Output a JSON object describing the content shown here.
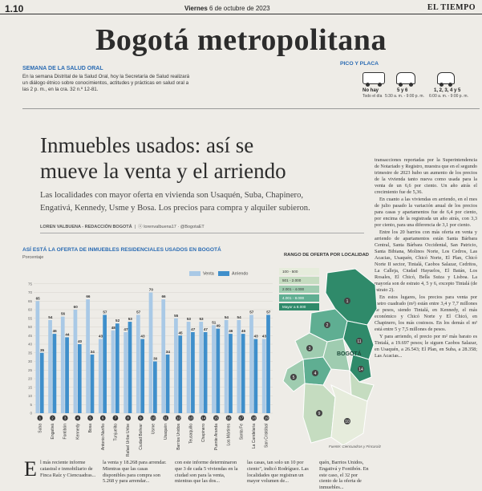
{
  "header": {
    "page_number": "1.10",
    "date_prefix": "Viernes",
    "date_rest": "6 de octubre de 2023",
    "newspaper": "EL TIEMPO",
    "section": "Bogotá metropolitana"
  },
  "semana": {
    "title": "SEMANA DE LA SALUD ORAL",
    "body": "En la semana Distrital de la Salud Oral, hoy la Secretaría de Salud realizará un diálogo étnico sobre conocimientos, actitudes y prácticas en salud oral a las 2 p. m., en la cra. 32 n.º 12-81."
  },
  "pico_placa": {
    "title": "PICO Y PLACA",
    "no_hay": "No hay",
    "no_hay_sub": "Todo el día",
    "taxi": "5 y 6",
    "taxi_sub": "5:30 a. m. - 9:00 p. m.",
    "special": "1, 2, 3, 4 y 5",
    "special_sub": "6:00 a. m. - 9:00 p. m."
  },
  "article": {
    "headline_line1": "Inmuebles usados: así se",
    "headline_line2": "mueve la venta y el arriendo",
    "deck_line1": "Las localidades con mayor oferta en vivienda son Usaquén, Suba, Chapinero,",
    "deck_line2": "Engativá, Kennedy, Usme y Bosa. Los precios para compra y alquiler subieron.",
    "byline": "LOREN VALBUENA - REDACCIÓN BOGOTÁ",
    "social": "lorenvalbuena17 · @BogotaET"
  },
  "right_column": [
    "transacciones reportadas por la Superintendencia de Notariado y Registro, muestra que en el segundo trimestre de 2023 hubo un aumento de los precios de la vivienda tanto nueva como usada para la venta de un 6,6 por ciento. Un año atrás el crecimiento fue de 5,36.",
    "En cuanto a las viviendas en arriendo, en el mes de julio pasado la variación anual de los precios para casas y apartamentos fue de 6,4 por ciento, por encima de la registrada un año atrás, con 3,3 por ciento, para una diferencia de 3,1 por ciento.",
    "Entre los 20 barrios con más oferta en venta y arriendo de apartamentos están Santa Bárbara Central, Santa Bárbara Occidental, San Patricio, Santa Bibiana, Molinos Norte, Los Cedros, Las Acacias, Usaquén, Chicó Norte, El Plan, Chicó Norte II sector, Tintalá, Caobos Salazar, Cedritos, La Calleja, Ciudad Hayuelos, El Batán, Los Rosales, El Chicó, Bella Suiza y Lisboa. La mayoría son de estrato 4, 5 y 6, excepto Tintalá (de estrato 2).",
    "En estos lugares, los precios para venta por metro cuadrado (m²) están entre 3,4 y 7,7 millones de pesos, siendo Tintalá, en Kennedy, el más económico y Chicó Norte y El Chicó, en Chapinero, los más costosos. En los demás el m² está entre 5 y 7,5 millones de pesos.",
    "Y para arriendo, el precio por m² más barato es Tintalá, a 19.697 pesos; le siguen Caobos Salazar, en Usaquén, a 26.543; El Plan, en Suba, a 28.358; Las Acacias..."
  ],
  "chart_data": {
    "type": "bar",
    "title": "ASÍ ESTÁ LA OFERTA DE INMUEBLES RESIDENCIALES USADOS EN BOGOTÁ",
    "ylabel": "Porcentaje",
    "ylim": [
      0,
      80
    ],
    "yticks": [
      0,
      5,
      10,
      15,
      20,
      25,
      30,
      35,
      40,
      45,
      50,
      55,
      60,
      65,
      70,
      75
    ],
    "categories": [
      "Suba",
      "Engativá",
      "Fontibón",
      "Kennedy",
      "Bosa",
      "Antonio Nariño",
      "Tunjuelito",
      "Rafael Uribe Uribe",
      "Ciudad Bolívar",
      "Usme",
      "Usaquén",
      "Barrios Unidos",
      "Teusaquillo",
      "Chapinero",
      "Puente Aranda",
      "Los Mártires",
      "Santa Fe",
      "La Candelaria",
      "San Cristóbal"
    ],
    "numbers": [
      "1",
      "2",
      "3",
      "4",
      "5",
      "6",
      "7",
      "8",
      "9",
      "10",
      "11",
      "12",
      "13",
      "14",
      "15",
      "16",
      "17",
      "18",
      "19"
    ],
    "series": [
      {
        "name": "Venta",
        "color": "#a9c9e6",
        "values": [
          65,
          54,
          56,
          60,
          66,
          43,
          48,
          47,
          57,
          70,
          66,
          55,
          53,
          53,
          51,
          54,
          54,
          57,
          43
        ]
      },
      {
        "name": "Arriendo",
        "color": "#3f8fcb",
        "values": [
          35,
          46,
          44,
          40,
          34,
          57,
          52,
          53,
          43,
          30,
          34,
          45,
          47,
          47,
          49,
          46,
          46,
          43,
          57
        ]
      }
    ],
    "legend_position": "top-right"
  },
  "map": {
    "title": "RANGO DE OFERTA POR LOCALIDAD",
    "legend": [
      {
        "label": "100 - 500",
        "color": "#e6ecdc"
      },
      {
        "label": "501 - 2.000",
        "color": "#c5dcc0"
      },
      {
        "label": "2.001 - 4.000",
        "color": "#9fccb0"
      },
      {
        "label": "4.001 - 8.000",
        "color": "#5fae92"
      },
      {
        "label": "Mayor a 8.000",
        "color": "#2f8a6a"
      }
    ],
    "city_label": "BOGOTÁ",
    "source": "Fuente: Ciencuadras y Fincaraíz"
  },
  "bottom_text": {
    "dropcap": "E",
    "col1": "l más reciente informe catastral e inmobiliario de Finca Raíz y Ciencuadras...",
    "col2": "la venta y 18.268 para arrendar. Mientras que las casas disponibles para compra son 5.268 y para arrendar...",
    "col3": "con este informe determinaron que 3 de cada 5 viviendas en la ciudad son para la venta, mientras que las dos...",
    "col4": "las casas, tan solo un 10 por ciento\", indicó Rodríguez. Las localidades que registran un mayor volumen de...",
    "col5": "quén, Barrios Unidos, Engativá y Fontibón. En este caso, el 32 por ciento de la oferta de inmuebles..."
  }
}
